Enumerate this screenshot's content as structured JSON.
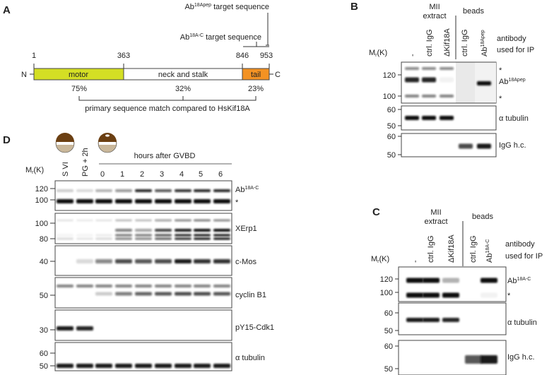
{
  "panel_a": {
    "label": "A",
    "n_terminus": "N",
    "c_terminus": "C",
    "positions": [
      "1",
      "363",
      "846",
      "953"
    ],
    "domains": [
      "motor",
      "neck and stalk",
      "tail"
    ],
    "domain_colors": {
      "motor": "#d4df24",
      "neck": "#ffffff",
      "tail": "#f39223"
    },
    "matches": [
      "75%",
      "32%",
      "23%"
    ],
    "match_caption": "primary sequence match compared to HsKif18A",
    "pep_target": {
      "base": "Ab",
      "sup": "18Apep",
      "rest": " target sequence"
    },
    "c_target": {
      "base": "Ab",
      "sup": "18A-C",
      "rest": " target sequence"
    }
  },
  "panel_b": {
    "label": "B",
    "group_extract": [
      "MII",
      "extract"
    ],
    "group_beads": "beads",
    "lanes": [
      "-",
      "ctrl. IgG",
      "ΔKif18A",
      "ctrl. IgG"
    ],
    "lane_ab": {
      "base": "Ab",
      "sup": "18Apep"
    },
    "mr": {
      "base": "M",
      "sub": "r",
      "rest": "(K)"
    },
    "antibody_caption": [
      "antibody",
      "used for IP"
    ],
    "ticks": [
      "120",
      "100",
      "60",
      "50",
      "60",
      "50"
    ],
    "right_labels": {
      "star1": "*",
      "ab": {
        "base": "Ab",
        "sup": "18Apep"
      },
      "star2": "*",
      "tubulin": "α tubulin",
      "igg": "IgG h.c."
    }
  },
  "panel_c": {
    "label": "C",
    "group_extract": [
      "MII",
      "extract"
    ],
    "group_beads": "beads",
    "lanes": [
      "-",
      "ctrl. IgG",
      "ΔKif18A",
      "ctrl. IgG"
    ],
    "lane_ab": {
      "base": "Ab",
      "sup": "18A-C"
    },
    "mr": {
      "base": "M",
      "sub": "r",
      "rest": "(K)"
    },
    "antibody_caption": [
      "antibody",
      "used for IP"
    ],
    "ticks": [
      "120",
      "100",
      "60",
      "50",
      "60",
      "50"
    ],
    "right_labels": {
      "ab": {
        "base": "Ab",
        "sup": "18A-C"
      },
      "star": "*",
      "tubulin": "α tubulin",
      "igg": "IgG h.c."
    }
  },
  "panel_d": {
    "label": "D",
    "mr": {
      "base": "M",
      "sub": "r",
      "rest": "(K)"
    },
    "lanes": [
      "S VI",
      "PG + 2h",
      "0",
      "1",
      "2",
      "3",
      "4",
      "5",
      "6"
    ],
    "time_header": "hours after GVBD",
    "oocyte_colors": {
      "animal": "#6b3f12",
      "vegetal": "#c9b79a"
    },
    "ticks": [
      "120",
      "100",
      "100",
      "80",
      "40",
      "50",
      "30",
      "60",
      "50"
    ],
    "right_labels": {
      "ab": {
        "base": "Ab",
        "sup": "18A-C"
      },
      "star": "*",
      "xerp1": "XErp1",
      "cmos": "c-Mos",
      "cyclin": "cyclin B1",
      "pcdk1": "pY15-Cdk1",
      "tubulin": "α tubulin"
    }
  }
}
